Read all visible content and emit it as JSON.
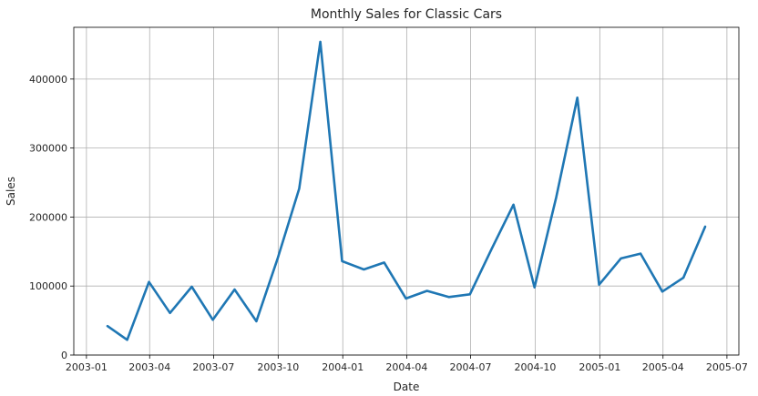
{
  "chart_data": {
    "type": "line",
    "title": "Monthly Sales for Classic Cars",
    "xlabel": "Date",
    "ylabel": "Sales",
    "grid": true,
    "x_ticks": [
      "2003-01",
      "2003-04",
      "2003-07",
      "2003-10",
      "2004-01",
      "2004-04",
      "2004-07",
      "2004-10",
      "2005-01",
      "2005-04",
      "2005-07"
    ],
    "y_ticks": [
      0,
      100000,
      200000,
      300000,
      400000
    ],
    "y_tick_labels": [
      "0",
      "100000",
      "200000",
      "300000",
      "400000"
    ],
    "xlim": [
      "2002-12-14",
      "2005-07-18"
    ],
    "ylim": [
      0,
      475000
    ],
    "line_color": "#1f77b4",
    "series": [
      {
        "x": [
          "2003-01-31",
          "2003-02-28",
          "2003-03-31",
          "2003-04-30",
          "2003-05-31",
          "2003-06-30",
          "2003-07-31",
          "2003-08-31",
          "2003-09-30",
          "2003-10-31",
          "2003-11-30",
          "2003-12-31",
          "2004-01-31",
          "2004-02-29",
          "2004-03-31",
          "2004-04-30",
          "2004-05-31",
          "2004-06-30",
          "2004-07-31",
          "2004-08-31",
          "2004-09-30",
          "2004-10-31",
          "2004-11-30",
          "2004-12-31",
          "2005-01-31",
          "2005-02-28",
          "2005-03-31",
          "2005-04-30",
          "2005-05-31"
        ],
        "values": [
          42000,
          22000,
          106000,
          61000,
          99000,
          51000,
          95000,
          49000,
          139000,
          241000,
          454000,
          136000,
          124000,
          134000,
          82000,
          93000,
          84000,
          88000,
          154000,
          218000,
          98000,
          229000,
          373000,
          102000,
          140000,
          147000,
          92000,
          112000,
          186000
        ]
      }
    ]
  }
}
